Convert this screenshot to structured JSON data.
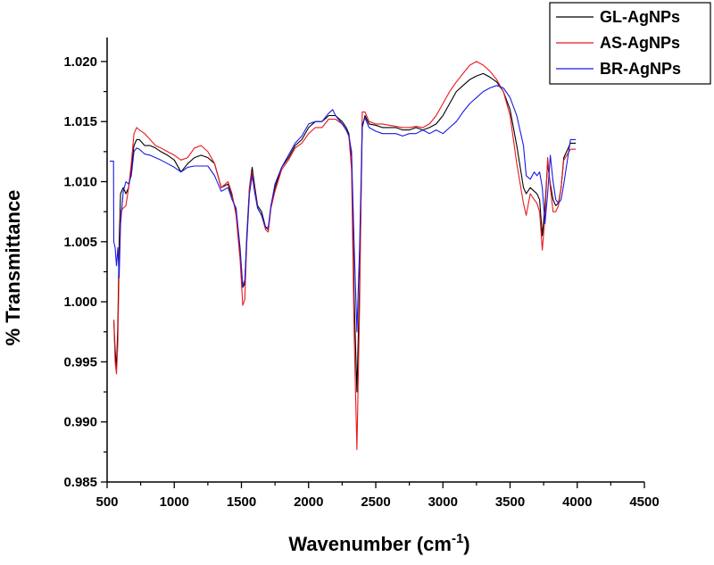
{
  "chart_data": {
    "type": "line",
    "xlabel": "Wavenumber (cm",
    "xlabel_sup": "-1",
    "xlabel_close": ")",
    "ylabel": "% Transmittance",
    "xlim": [
      500,
      4500
    ],
    "ylim": [
      0.985,
      1.022
    ],
    "x_ticks": [
      500,
      1000,
      1500,
      2000,
      2500,
      3000,
      3500,
      4000,
      4500
    ],
    "x_tick_labels": [
      "500",
      "1000",
      "1500",
      "2000",
      "2500",
      "3000",
      "3500",
      "4000",
      "4500"
    ],
    "y_ticks": [
      0.985,
      0.99,
      0.995,
      1.0,
      1.005,
      1.01,
      1.015,
      1.02
    ],
    "y_tick_labels": [
      "0.985",
      "0.990",
      "0.995",
      "1.000",
      "1.005",
      "1.010",
      "1.015",
      "1.020"
    ],
    "grid": false,
    "legend_position": "top-right",
    "series": [
      {
        "name": "GL-AgNPs",
        "color": "#000000",
        "x": [
          550,
          560,
          570,
          580,
          590,
          600,
          620,
          640,
          660,
          680,
          700,
          720,
          740,
          780,
          820,
          860,
          900,
          950,
          1000,
          1050,
          1100,
          1150,
          1200,
          1250,
          1300,
          1350,
          1400,
          1430,
          1460,
          1490,
          1510,
          1525,
          1540,
          1560,
          1580,
          1600,
          1620,
          1650,
          1680,
          1700,
          1720,
          1750,
          1800,
          1850,
          1900,
          1950,
          2000,
          2050,
          2100,
          2150,
          2200,
          2250,
          2280,
          2300,
          2320,
          2340,
          2360,
          2380,
          2400,
          2420,
          2450,
          2500,
          2550,
          2600,
          2650,
          2700,
          2750,
          2800,
          2850,
          2900,
          2950,
          3000,
          3050,
          3100,
          3150,
          3200,
          3250,
          3300,
          3350,
          3400,
          3450,
          3500,
          3550,
          3600,
          3620,
          3650,
          3680,
          3700,
          3720,
          3740,
          3760,
          3780,
          3800,
          3820,
          3840,
          3860,
          3880,
          3900,
          3950,
          3990
        ],
        "y": [
          0.9985,
          0.996,
          0.9945,
          0.998,
          1.005,
          1.009,
          1.0095,
          1.009,
          1.0095,
          1.011,
          1.013,
          1.0135,
          1.0135,
          1.013,
          1.013,
          1.0128,
          1.0125,
          1.0122,
          1.0118,
          1.0108,
          1.0115,
          1.012,
          1.0122,
          1.012,
          1.0115,
          1.0095,
          1.0098,
          1.0088,
          1.0075,
          1.004,
          1.0012,
          1.0015,
          1.0055,
          1.0095,
          1.0112,
          1.0095,
          1.008,
          1.0075,
          1.0062,
          1.006,
          1.008,
          1.0095,
          1.0112,
          1.012,
          1.013,
          1.0135,
          1.0145,
          1.015,
          1.015,
          1.0155,
          1.0155,
          1.015,
          1.0145,
          1.014,
          1.012,
          1.0,
          0.9925,
          1.0015,
          1.0145,
          1.0155,
          1.0148,
          1.0147,
          1.0145,
          1.0145,
          1.0145,
          1.0143,
          1.0143,
          1.0145,
          1.0143,
          1.0145,
          1.0148,
          1.0155,
          1.0165,
          1.0175,
          1.018,
          1.0185,
          1.0188,
          1.019,
          1.0187,
          1.0183,
          1.0175,
          1.016,
          1.013,
          1.0095,
          1.009,
          1.0095,
          1.0092,
          1.009,
          1.0085,
          1.0055,
          1.008,
          1.0115,
          1.0098,
          1.0085,
          1.008,
          1.0082,
          1.0095,
          1.012,
          1.0132,
          1.0132
        ]
      },
      {
        "name": "AS-AgNPs",
        "color": "#e8181c",
        "x": [
          550,
          560,
          570,
          580,
          590,
          600,
          620,
          640,
          660,
          680,
          700,
          720,
          740,
          780,
          820,
          860,
          900,
          950,
          1000,
          1050,
          1100,
          1150,
          1200,
          1250,
          1300,
          1350,
          1400,
          1430,
          1460,
          1490,
          1510,
          1525,
          1540,
          1560,
          1580,
          1600,
          1620,
          1650,
          1680,
          1700,
          1720,
          1750,
          1800,
          1850,
          1900,
          1950,
          2000,
          2050,
          2100,
          2150,
          2200,
          2250,
          2280,
          2300,
          2320,
          2340,
          2360,
          2380,
          2400,
          2420,
          2450,
          2500,
          2550,
          2600,
          2650,
          2700,
          2750,
          2800,
          2850,
          2900,
          2950,
          3000,
          3050,
          3100,
          3150,
          3200,
          3250,
          3300,
          3350,
          3400,
          3450,
          3500,
          3550,
          3600,
          3620,
          3650,
          3680,
          3700,
          3720,
          3740,
          3760,
          3780,
          3800,
          3820,
          3840,
          3860,
          3880,
          3900,
          3950,
          3990
        ],
        "y": [
          0.9985,
          0.995,
          0.994,
          0.9965,
          1.003,
          1.0075,
          1.0078,
          1.008,
          1.0095,
          1.0115,
          1.014,
          1.0145,
          1.0143,
          1.014,
          1.0135,
          1.013,
          1.0128,
          1.0125,
          1.0122,
          1.0118,
          1.012,
          1.0128,
          1.013,
          1.0125,
          1.0115,
          1.0095,
          1.01,
          1.009,
          1.0072,
          1.0035,
          0.9997,
          1.0002,
          1.005,
          1.0095,
          1.0108,
          1.0092,
          1.0078,
          1.0072,
          1.006,
          1.0058,
          1.0078,
          1.0092,
          1.011,
          1.0118,
          1.0128,
          1.0132,
          1.014,
          1.0145,
          1.0145,
          1.0152,
          1.0152,
          1.0148,
          1.0143,
          1.0138,
          1.011,
          0.997,
          0.9877,
          0.9995,
          1.0158,
          1.0158,
          1.015,
          1.0148,
          1.0148,
          1.0147,
          1.0146,
          1.0145,
          1.0145,
          1.0146,
          1.0145,
          1.0148,
          1.0155,
          1.0165,
          1.0175,
          1.0183,
          1.019,
          1.0197,
          1.02,
          1.0197,
          1.0192,
          1.0185,
          1.0175,
          1.0155,
          1.0115,
          1.0082,
          1.0072,
          1.009,
          1.0085,
          1.0082,
          1.0075,
          1.0043,
          1.007,
          1.012,
          1.0095,
          1.0075,
          1.0075,
          1.008,
          1.0095,
          1.0118,
          1.0127,
          1.0127
        ]
      },
      {
        "name": "BR-AgNPs",
        "color": "#1a1ae0",
        "x": [
          520,
          548,
          550,
          560,
          570,
          580,
          590,
          600,
          620,
          640,
          660,
          680,
          700,
          720,
          740,
          780,
          820,
          860,
          900,
          950,
          1000,
          1050,
          1100,
          1150,
          1200,
          1250,
          1300,
          1350,
          1400,
          1430,
          1460,
          1490,
          1510,
          1525,
          1540,
          1560,
          1580,
          1600,
          1620,
          1650,
          1680,
          1700,
          1720,
          1750,
          1800,
          1850,
          1900,
          1950,
          2000,
          2050,
          2100,
          2150,
          2180,
          2200,
          2250,
          2280,
          2300,
          2320,
          2340,
          2360,
          2380,
          2400,
          2420,
          2450,
          2500,
          2550,
          2600,
          2650,
          2700,
          2750,
          2800,
          2850,
          2900,
          2950,
          3000,
          3050,
          3100,
          3150,
          3200,
          3250,
          3300,
          3350,
          3400,
          3450,
          3500,
          3550,
          3600,
          3620,
          3650,
          3680,
          3700,
          3720,
          3740,
          3760,
          3780,
          3800,
          3820,
          3840,
          3860,
          3880,
          3900,
          3950,
          3990
        ],
        "y": [
          1.0117,
          1.0117,
          1.005,
          1.0045,
          1.003,
          1.0045,
          1.002,
          1.0065,
          1.0092,
          1.01,
          1.0098,
          1.0105,
          1.0125,
          1.0128,
          1.0127,
          1.0123,
          1.0122,
          1.012,
          1.0118,
          1.0115,
          1.0112,
          1.0108,
          1.0112,
          1.0113,
          1.0113,
          1.0113,
          1.0105,
          1.0092,
          1.0095,
          1.0085,
          1.0078,
          1.0045,
          1.0013,
          1.0018,
          1.005,
          1.009,
          1.0105,
          1.009,
          1.0078,
          1.0072,
          1.0062,
          1.0062,
          1.008,
          1.0098,
          1.0112,
          1.0122,
          1.0132,
          1.0138,
          1.0148,
          1.015,
          1.015,
          1.0157,
          1.016,
          1.0155,
          1.0148,
          1.0143,
          1.0138,
          1.0125,
          1.0045,
          0.9975,
          1.0045,
          1.0148,
          1.0153,
          1.0145,
          1.0142,
          1.014,
          1.014,
          1.014,
          1.0138,
          1.014,
          1.014,
          1.0143,
          1.014,
          1.0143,
          1.014,
          1.0145,
          1.015,
          1.0158,
          1.0165,
          1.017,
          1.0175,
          1.0178,
          1.018,
          1.0178,
          1.017,
          1.0155,
          1.013,
          1.0105,
          1.0102,
          1.0108,
          1.0105,
          1.0108,
          1.0095,
          1.0065,
          1.009,
          1.0122,
          1.01,
          1.0085,
          1.0082,
          1.0085,
          1.0098,
          1.0135,
          1.0135
        ]
      }
    ]
  }
}
